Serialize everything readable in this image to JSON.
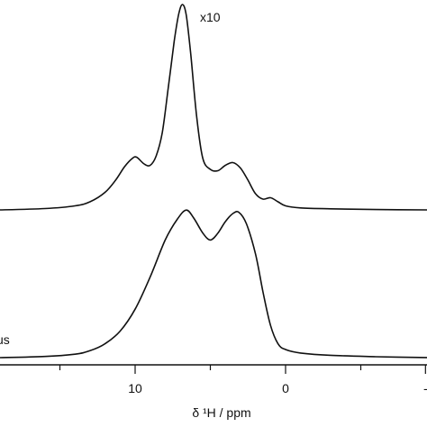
{
  "chart_data": {
    "type": "line",
    "x_unit_label": "δ ¹H / ppm",
    "x_axis_reversed": true,
    "x_visible_range": [
      18.8,
      -9.5
    ],
    "x_ticks": [
      {
        "value": 10,
        "label": "10"
      },
      {
        "value": 0,
        "label": "0"
      },
      {
        "value": -9,
        "label": "-"
      }
    ],
    "y_axis_shown": false,
    "grid": false,
    "series": [
      {
        "annotation": "x10",
        "baseline_y": 0,
        "points": [
          [
            19,
            0.0
          ],
          [
            16,
            0.01
          ],
          [
            14,
            0.03
          ],
          [
            13,
            0.06
          ],
          [
            12,
            0.13
          ],
          [
            11.3,
            0.22
          ],
          [
            10.7,
            0.32
          ],
          [
            10.2,
            0.38
          ],
          [
            9.9,
            0.39
          ],
          [
            9.4,
            0.34
          ],
          [
            9.0,
            0.33
          ],
          [
            8.6,
            0.4
          ],
          [
            8.2,
            0.57
          ],
          [
            7.8,
            0.9
          ],
          [
            7.4,
            1.25
          ],
          [
            7.1,
            1.45
          ],
          [
            6.85,
            1.52
          ],
          [
            6.6,
            1.44
          ],
          [
            6.3,
            1.15
          ],
          [
            5.9,
            0.68
          ],
          [
            5.5,
            0.38
          ],
          [
            5.0,
            0.3
          ],
          [
            4.5,
            0.29
          ],
          [
            4.0,
            0.33
          ],
          [
            3.5,
            0.35
          ],
          [
            3.0,
            0.31
          ],
          [
            2.5,
            0.22
          ],
          [
            2.0,
            0.12
          ],
          [
            1.5,
            0.08
          ],
          [
            1.0,
            0.09
          ],
          [
            0.5,
            0.06
          ],
          [
            0,
            0.03
          ],
          [
            -1,
            0.015
          ],
          [
            -3,
            0.008
          ],
          [
            -6,
            0.003
          ],
          [
            -9.5,
            0.0
          ]
        ]
      },
      {
        "annotation": "us",
        "baseline_y": 0,
        "points": [
          [
            19,
            0.0
          ],
          [
            16,
            0.01
          ],
          [
            14,
            0.03
          ],
          [
            13,
            0.06
          ],
          [
            12,
            0.12
          ],
          [
            11,
            0.23
          ],
          [
            10,
            0.42
          ],
          [
            9,
            0.7
          ],
          [
            8,
            1.02
          ],
          [
            7.2,
            1.2
          ],
          [
            6.6,
            1.28
          ],
          [
            6.1,
            1.21
          ],
          [
            5.5,
            1.08
          ],
          [
            5.0,
            1.02
          ],
          [
            4.5,
            1.08
          ],
          [
            4.0,
            1.18
          ],
          [
            3.5,
            1.25
          ],
          [
            3.1,
            1.26
          ],
          [
            2.6,
            1.16
          ],
          [
            2.0,
            0.9
          ],
          [
            1.5,
            0.57
          ],
          [
            1.0,
            0.28
          ],
          [
            0.5,
            0.12
          ],
          [
            0,
            0.07
          ],
          [
            -1,
            0.04
          ],
          [
            -3,
            0.02
          ],
          [
            -6,
            0.008
          ],
          [
            -9.5,
            0.0
          ]
        ]
      }
    ]
  }
}
